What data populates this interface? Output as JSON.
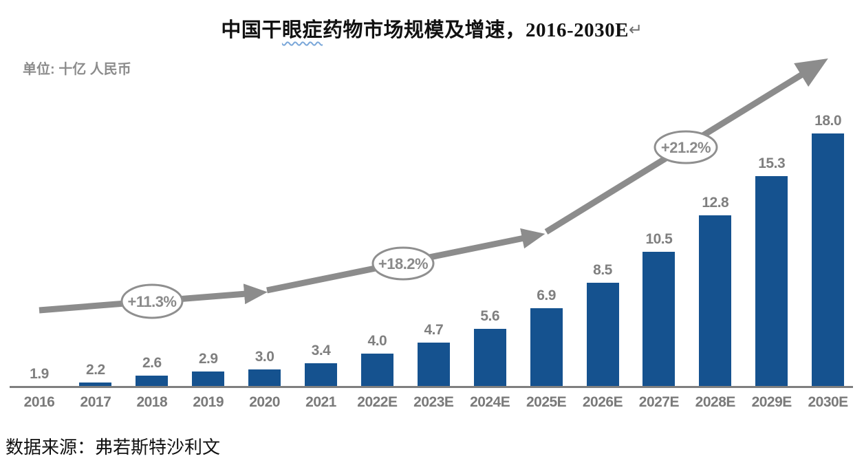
{
  "header": {
    "title_part1": "中国干",
    "title_part2": "眼症",
    "title_part3": "药物市场规模及增速，2016-2030E",
    "return_mark": "↵"
  },
  "chart_data": {
    "type": "bar",
    "title": "中国干眼症药物市场规模及增速，2016-2030E",
    "unit_label": "单位: 十亿 人民币",
    "source": "数据来源：弗若斯特沙利文",
    "xlabel": "",
    "ylabel": "",
    "categories": [
      "2016",
      "2017",
      "2018",
      "2019",
      "2020",
      "2021",
      "2022E",
      "2023E",
      "2024E",
      "2025E",
      "2026E",
      "2027E",
      "2028E",
      "2029E",
      "2030E"
    ],
    "values": [
      1.9,
      2.2,
      2.6,
      2.9,
      3.0,
      3.4,
      4.0,
      4.7,
      5.6,
      6.9,
      8.5,
      10.5,
      12.8,
      15.3,
      18.0
    ],
    "value_decimals": 1,
    "ylim": [
      0,
      20
    ],
    "grid": false,
    "y_axis_visible": false,
    "annotations": [
      {
        "label": "+11.3%"
      },
      {
        "label": "+18.2%"
      },
      {
        "label": "+21.2%"
      }
    ],
    "colors": {
      "bar_blue": "#15528f",
      "trend_gray": "#8c8c8c",
      "label_gray": "#7f7f7f"
    }
  }
}
